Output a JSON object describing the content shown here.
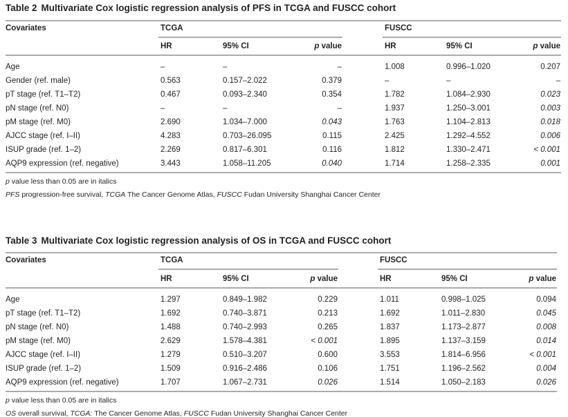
{
  "tables": [
    {
      "label": "Table 2",
      "caption": "Multivariate Cox logistic regression analysis of PFS in TCGA and FUSCC cohort",
      "first_header": "Covariates",
      "groups": [
        "TCGA",
        "FUSCC"
      ],
      "subheaders": [
        [
          {
            "text": "HR"
          }
        ],
        [
          {
            "text": "95% CI"
          }
        ],
        [
          {
            "text": "p",
            "italic": true
          },
          {
            "text": " value"
          }
        ]
      ],
      "rows": [
        [
          "Age",
          "–",
          "–",
          "–",
          "1.008",
          "0.996–1.020",
          "0.207"
        ],
        [
          "Gender (ref. male)",
          "0.563",
          "0.157–2.022",
          "0.379",
          "–",
          "–",
          "–"
        ],
        [
          "pT stage (ref. T1–T2)",
          "0.467",
          "0.093–2.340",
          "0.354",
          "1.782",
          "1.084–2.930",
          "0.023"
        ],
        [
          "pN stage (ref. N0)",
          "–",
          "–",
          "–",
          "1.937",
          "1.250–3.001",
          "0.003"
        ],
        [
          "pM stage (ref. M0)",
          "2.690",
          "1.034–7.000",
          "0.043",
          "1.763",
          "1.104–2.813",
          "0.018"
        ],
        [
          "AJCC stage (ref. I–II)",
          "4.283",
          "0.703–26.095",
          "0.115",
          "2.425",
          "1.292–4.552",
          "0.006"
        ],
        [
          "ISUP grade (ref. 1–2)",
          "2.269",
          "0.817–6.301",
          "0.116",
          "1.812",
          "1.330–2.471",
          "< 0.001"
        ],
        [
          "AQP9 expression (ref. negative)",
          "3.443",
          "1.058–11.205",
          "0.040",
          "1.714",
          "1.258–2.335",
          "0.001"
        ]
      ],
      "italic_cells": [
        [
          2,
          6
        ],
        [
          3,
          6
        ],
        [
          4,
          3
        ],
        [
          4,
          6
        ],
        [
          5,
          6
        ],
        [
          6,
          6
        ],
        [
          7,
          3
        ],
        [
          7,
          6
        ]
      ],
      "notes": [
        [
          {
            "text": "p",
            "italic": true
          },
          {
            "text": " value less than 0.05 are in italics"
          }
        ],
        [
          {
            "text": "PFS",
            "italic": true
          },
          {
            "text": " progression-free survival, "
          },
          {
            "text": "TCGA",
            "italic": true
          },
          {
            "text": " The Cancer Genome Atlas, "
          },
          {
            "text": "FUSCC",
            "italic": true
          },
          {
            "text": " Fudan University Shanghai Cancer Center"
          }
        ]
      ]
    },
    {
      "label": "Table 3",
      "caption": "Multivariate Cox logistic regression analysis of OS in TCGA and FUSCC cohort",
      "first_header": "Covariates",
      "groups": [
        "TCGA",
        "FUSCC"
      ],
      "subheaders": [
        [
          {
            "text": "HR"
          }
        ],
        [
          {
            "text": "95% CI"
          }
        ],
        [
          {
            "text": "p",
            "italic": true
          },
          {
            "text": " value"
          }
        ]
      ],
      "rows": [
        [
          "Age",
          "1.297",
          "0.849–1.982",
          "0.229",
          "1.011",
          "0.998–1.025",
          "0.094"
        ],
        [
          "pT stage (ref. T1–T2)",
          "1.692",
          "0.740–3.871",
          "0.213",
          "1.692",
          "1.011–2.830",
          "0.045"
        ],
        [
          "pN stage (ref. N0)",
          "1.488",
          "0.740–2.993",
          "0.265",
          "1.837",
          "1.173–2.877",
          "0.008"
        ],
        [
          "pM stage (ref. M0)",
          "2.629",
          "1.578–4.381",
          "< 0.001",
          "1.895",
          "1.137–3.159",
          "0.014"
        ],
        [
          "AJCC stage (ref. I–II)",
          "1.279",
          "0.510–3.207",
          "0.600",
          "3.553",
          "1.814–6.956",
          "< 0.001"
        ],
        [
          "ISUP grade (ref. 1–2)",
          "1.509",
          "0.916–2.486",
          "0.106",
          "1.751",
          "1.196–2.562",
          "0.004"
        ],
        [
          "AQP9 expression (ref. negative)",
          "1.707",
          "1.067–2.731",
          "0.026",
          "1.514",
          "1.050–2.183",
          "0.026"
        ]
      ],
      "italic_cells": [
        [
          1,
          6
        ],
        [
          2,
          6
        ],
        [
          3,
          3
        ],
        [
          3,
          6
        ],
        [
          4,
          6
        ],
        [
          5,
          6
        ],
        [
          6,
          3
        ],
        [
          6,
          6
        ]
      ],
      "notes": [
        [
          {
            "text": "p",
            "italic": true
          },
          {
            "text": " value less than 0.05 are in italics"
          }
        ],
        [
          {
            "text": "OS",
            "italic": true
          },
          {
            "text": " overall survival, "
          },
          {
            "text": "TCGA:",
            "italic": true
          },
          {
            "text": " The Cancer Genome Atlas, "
          },
          {
            "text": "FUSCC",
            "italic": true
          },
          {
            "text": " Fudan University Shanghai Cancer Center"
          }
        ]
      ]
    }
  ]
}
